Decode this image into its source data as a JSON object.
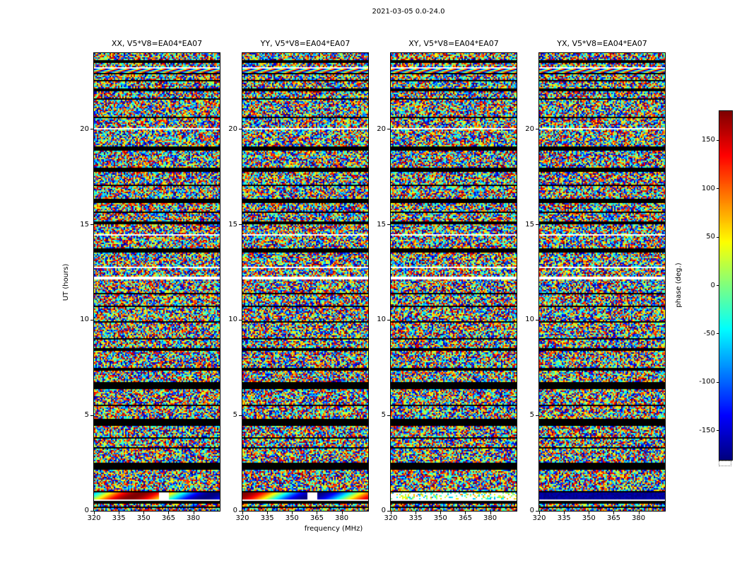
{
  "title": "2021-03-05 0.0-24.0",
  "chart_data": {
    "type": "heatmap",
    "title": "2021-03-05 0.0-24.0",
    "panels": [
      {
        "corr": "XX",
        "title": "XX, V5*V8=EA04*EA07"
      },
      {
        "corr": "YY",
        "title": "YY, V5*V8=EA04*EA07"
      },
      {
        "corr": "XY",
        "title": "XY, V5*V8=EA04*EA07"
      },
      {
        "corr": "YX",
        "title": "YX, V5*V8=EA04*EA07"
      }
    ],
    "xlabel": "frequency (MHz)",
    "ylabel": "UT (hours)",
    "xlim": [
      320,
      396
    ],
    "ylim": [
      0,
      24
    ],
    "xticks": [
      320,
      335,
      350,
      365,
      380
    ],
    "yticks": [
      0,
      5,
      10,
      15,
      20
    ],
    "colorbar": {
      "label": "phase (deg.)",
      "ticks": [
        150,
        100,
        50,
        0,
        -50,
        -100,
        -150
      ],
      "range": [
        -180,
        180
      ],
      "colormap": "jet"
    },
    "content": "Dynamic spectra of visibility phase (noise-like values spanning -180 to 180 deg, jet colormap) versus UT time (0-24 h) and frequency (320-396 MHz) for the four correlations XX, YY, XY, YX of baseline V5*V8=EA04*EA07. Horizontal black rows are flagged integrations shared across all panels; white rows are missing data; saturated smooth-phase bands appear near UT 23.3 and UT 0.8."
  }
}
